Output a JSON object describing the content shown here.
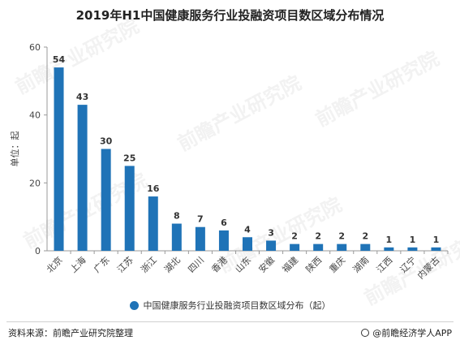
{
  "title": "2019年H1中国健康服务行业投融资项目数区域分布情况",
  "source": "资料来源：前瞻产业研究院整理",
  "brand": "@前瞻经济学人APP",
  "watermark": "前瞻产业研究院",
  "colors": {
    "bar": "#1f73b7",
    "axis": "#999999",
    "grid": "#e0e0e0"
  },
  "chart_data": {
    "type": "bar",
    "categories": [
      "北京",
      "上海",
      "广东",
      "江苏",
      "浙江",
      "湖北",
      "四川",
      "香港",
      "山东",
      "安徽",
      "福建",
      "陕西",
      "重庆",
      "湖南",
      "江西",
      "辽宁",
      "内蒙古"
    ],
    "series": [
      {
        "name": "中国健康服务行业投融资项目数区域分布（起）",
        "values": [
          54,
          43,
          30,
          25,
          16,
          8,
          7,
          6,
          4,
          3,
          2,
          2,
          2,
          2,
          1,
          1,
          1
        ]
      }
    ],
    "ylabel": "单位：起",
    "ylim": [
      0,
      60
    ],
    "yticks": [
      0,
      20,
      40,
      60
    ],
    "grid": false,
    "legend_position": "bottom"
  }
}
